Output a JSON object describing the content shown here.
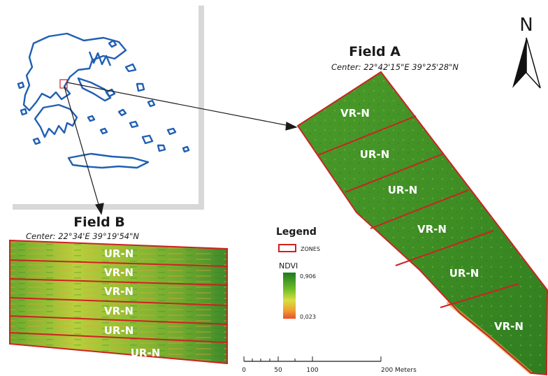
{
  "field_a": {
    "title": "Field A",
    "center": "Center: 22°42'15\"E 39°25'28\"N",
    "zones": [
      "VR-N",
      "UR-N",
      "UR-N",
      "VR-N",
      "UR-N",
      "VR-N"
    ]
  },
  "field_b": {
    "title": "Field B",
    "center": "Center: 22°34'E 39°19'54\"N",
    "zones": [
      "UR-N",
      "VR-N",
      "VR-N",
      "VR-N",
      "UR-N",
      "UR-N"
    ]
  },
  "north_arrow": {
    "label": "N"
  },
  "legend": {
    "title": "Legend",
    "zones_label": "ZONES",
    "ndvi_label": "NDVI",
    "ndvi_max": "0,906",
    "ndvi_min": "0,023",
    "zone_color": "#cc2222",
    "ramp_colors": [
      "#1f7a1f",
      "#6cbb2a",
      "#d8e040",
      "#f0a030",
      "#e8502a"
    ]
  },
  "scale_bar": {
    "ticks": [
      "0",
      "50",
      "100",
      "200 Meters"
    ]
  },
  "colors": {
    "greece_outline": "#1f5fb4",
    "zone_border": "#cc2222",
    "inset_frame": "#d8d8d8"
  }
}
